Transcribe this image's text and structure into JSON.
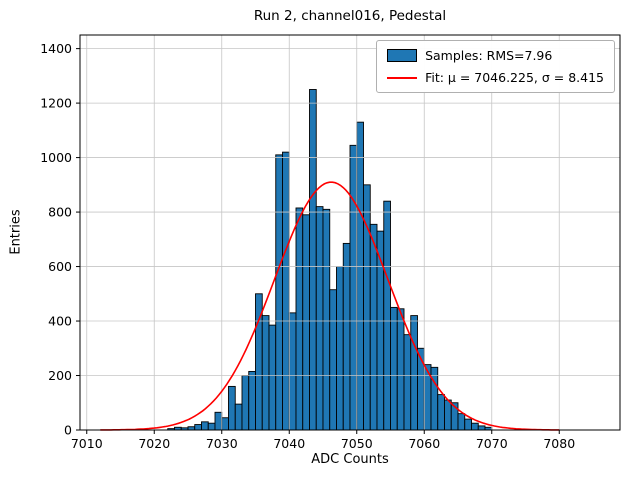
{
  "figure": {
    "title": "Run 2, channel016, Pedestal",
    "xlabel": "ADC Counts",
    "ylabel": "Entries"
  },
  "legend": {
    "samples_label": "Samples: RMS=7.96",
    "fit_label": "Fit: μ = 7046.225, σ = 8.415"
  },
  "chart_data": {
    "type": "bar",
    "subtype": "histogram",
    "title": "Run 2, channel016, Pedestal",
    "xlabel": "ADC Counts",
    "ylabel": "Entries",
    "xlim": [
      7009,
      7089
    ],
    "ylim": [
      0,
      1450
    ],
    "x_ticks": [
      7010,
      7020,
      7030,
      7040,
      7050,
      7060,
      7070,
      7080
    ],
    "y_ticks": [
      0,
      200,
      400,
      600,
      800,
      1000,
      1200,
      1400
    ],
    "grid": true,
    "legend_position": "upper right",
    "bin_width": 1,
    "bin_left_edges": [
      7022,
      7023,
      7024,
      7025,
      7026,
      7027,
      7028,
      7029,
      7030,
      7031,
      7032,
      7033,
      7034,
      7035,
      7036,
      7037,
      7038,
      7039,
      7040,
      7041,
      7042,
      7043,
      7044,
      7045,
      7046,
      7047,
      7048,
      7049,
      7050,
      7051,
      7052,
      7053,
      7054,
      7055,
      7056,
      7057,
      7058,
      7059,
      7060,
      7061,
      7062,
      7063,
      7064,
      7065,
      7066,
      7067,
      7068,
      7069
    ],
    "values": [
      5,
      10,
      8,
      12,
      20,
      30,
      25,
      65,
      45,
      160,
      95,
      200,
      215,
      500,
      420,
      385,
      1010,
      1020,
      430,
      815,
      790,
      1250,
      820,
      810,
      515,
      600,
      685,
      1045,
      1130,
      900,
      755,
      730,
      840,
      450,
      445,
      350,
      420,
      300,
      240,
      230,
      130,
      110,
      100,
      60,
      40,
      25,
      15,
      10
    ],
    "series_stats": {
      "rms": 7.96
    },
    "fit": {
      "type": "gaussian",
      "mu": 7046.225,
      "sigma": 8.415,
      "amplitude": 910,
      "x_range": [
        7012,
        7080
      ]
    },
    "colors": {
      "bar_fill": "#1f77b4",
      "bar_edge": "#000000",
      "fit_line": "#ff0000",
      "grid": "#c6c6c6"
    }
  }
}
